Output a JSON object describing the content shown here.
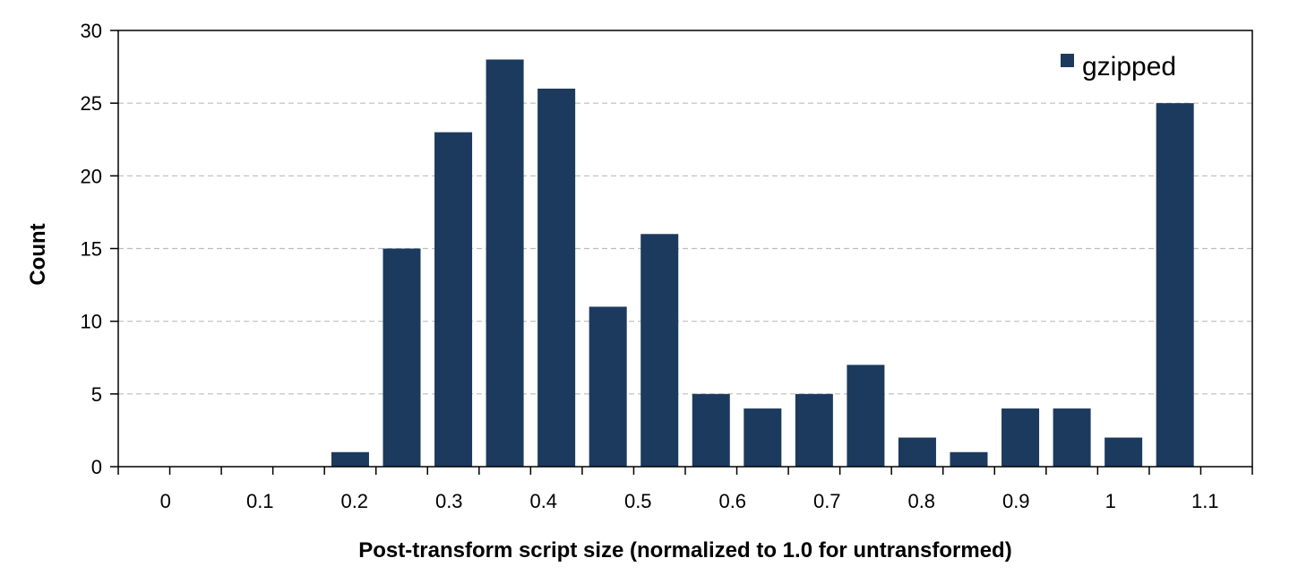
{
  "chart_data": {
    "type": "bar",
    "title": "",
    "xlabel": "Post-transform script size (normalized to 1.0 for untransformed)",
    "ylabel": "Count",
    "xlim": [
      0,
      1.1
    ],
    "ylim": [
      0,
      30
    ],
    "x_tick_labels": [
      "0",
      "0.1",
      "0.2",
      "0.3",
      "0.4",
      "0.5",
      "0.6",
      "0.7",
      "0.8",
      "0.9",
      "1",
      "1.1"
    ],
    "y_tick_labels": [
      "0",
      "5",
      "10",
      "15",
      "20",
      "25",
      "30"
    ],
    "bin_width": 0.05,
    "legend_position": "top-right",
    "grid": "horizontal dashed",
    "series": [
      {
        "name": "gzipped",
        "color": "#1c3a5e",
        "x": [
          0.0,
          0.05,
          0.1,
          0.15,
          0.2,
          0.25,
          0.3,
          0.35,
          0.4,
          0.45,
          0.5,
          0.55,
          0.6,
          0.65,
          0.7,
          0.75,
          0.8,
          0.85,
          0.9,
          0.95,
          1.0,
          1.05
        ],
        "values": [
          0,
          0,
          0,
          0,
          1,
          15,
          23,
          28,
          26,
          11,
          16,
          5,
          4,
          5,
          7,
          2,
          1,
          4,
          4,
          2,
          25,
          0
        ]
      }
    ]
  }
}
